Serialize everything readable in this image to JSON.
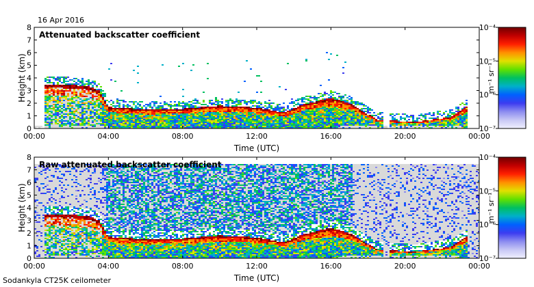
{
  "date": "16 Apr 2016",
  "footer": "Sodankyla CT25K ceilometer",
  "colors": {
    "background": "#ffffff",
    "no_signal": "#d9d9d9",
    "colormap": [
      "#f0f0ff",
      "#c8c8f5",
      "#8c8cf0",
      "#3c3cf0",
      "#0060ff",
      "#00b0c8",
      "#00c060",
      "#60e000",
      "#e0e000",
      "#ff9000",
      "#ff2000",
      "#c00000",
      "#700000"
    ]
  },
  "chart_data": [
    {
      "type": "heatmap",
      "title": "Attenuated backscatter coefficient",
      "xlabel": "Time (UTC)",
      "ylabel": "Height (km)",
      "xticks": [
        "00:00",
        "04:00",
        "08:00",
        "12:00",
        "16:00",
        "20:00",
        "00:00"
      ],
      "yticks": [
        "0",
        "1",
        "2",
        "3",
        "4",
        "5",
        "6",
        "7",
        "8"
      ],
      "xlim_hours": [
        0,
        24
      ],
      "ylim_km": [
        0,
        8
      ],
      "colorbar": {
        "scale": "log",
        "label": "m⁻¹ sr⁻¹",
        "ticks": [
          "10⁻⁴",
          "10⁻⁵",
          "10⁻⁶",
          "10⁻⁷"
        ],
        "range": [
          1e-07,
          0.0001
        ]
      },
      "features": {
        "layer_top_km": [
          {
            "t": 0.8,
            "h": 3.5
          },
          {
            "t": 2.0,
            "h": 3.45
          },
          {
            "t": 3.0,
            "h": 3.3
          },
          {
            "t": 3.5,
            "h": 3.0
          },
          {
            "t": 4.0,
            "h": 1.7
          },
          {
            "t": 6.0,
            "h": 1.5
          },
          {
            "t": 8.0,
            "h": 1.55
          },
          {
            "t": 10.0,
            "h": 1.8
          },
          {
            "t": 12.0,
            "h": 1.65
          },
          {
            "t": 13.5,
            "h": 1.25
          },
          {
            "t": 14.5,
            "h": 1.9
          },
          {
            "t": 16.0,
            "h": 2.4
          },
          {
            "t": 17.0,
            "h": 2.0
          },
          {
            "t": 18.5,
            "h": 0.7
          },
          {
            "t": 20.5,
            "h": 0.5
          },
          {
            "t": 22.5,
            "h": 0.9
          },
          {
            "t": 23.5,
            "h": 1.9
          }
        ]
      }
    },
    {
      "type": "heatmap",
      "title": "Raw attenuated backscatter coefficient",
      "xlabel": "Time (UTC)",
      "ylabel": "Height (km)",
      "xticks": [
        "00:00",
        "04:00",
        "08:00",
        "12:00",
        "16:00",
        "20:00",
        "00:00"
      ],
      "yticks": [
        "0",
        "1",
        "2",
        "3",
        "4",
        "5",
        "6",
        "7",
        "8"
      ],
      "xlim_hours": [
        0,
        24
      ],
      "ylim_km": [
        0,
        8
      ],
      "colorbar": {
        "scale": "log",
        "label": "m⁻¹ sr⁻¹",
        "ticks": [
          "10⁻⁴",
          "10⁻⁵",
          "10⁻⁶",
          "10⁻⁷"
        ],
        "range": [
          1e-07,
          0.0001
        ]
      },
      "features": {
        "noise_top_km": 7.5,
        "layer_top_km": [
          {
            "t": 0.8,
            "h": 3.5
          },
          {
            "t": 2.0,
            "h": 3.45
          },
          {
            "t": 3.0,
            "h": 3.3
          },
          {
            "t": 3.5,
            "h": 3.0
          },
          {
            "t": 4.0,
            "h": 1.7
          },
          {
            "t": 6.0,
            "h": 1.5
          },
          {
            "t": 8.0,
            "h": 1.55
          },
          {
            "t": 10.0,
            "h": 1.8
          },
          {
            "t": 12.0,
            "h": 1.65
          },
          {
            "t": 13.5,
            "h": 1.25
          },
          {
            "t": 14.5,
            "h": 1.9
          },
          {
            "t": 16.0,
            "h": 2.4
          },
          {
            "t": 17.0,
            "h": 2.0
          },
          {
            "t": 18.5,
            "h": 0.7
          },
          {
            "t": 20.5,
            "h": 0.5
          },
          {
            "t": 22.5,
            "h": 0.9
          },
          {
            "t": 23.5,
            "h": 1.9
          }
        ]
      }
    }
  ]
}
